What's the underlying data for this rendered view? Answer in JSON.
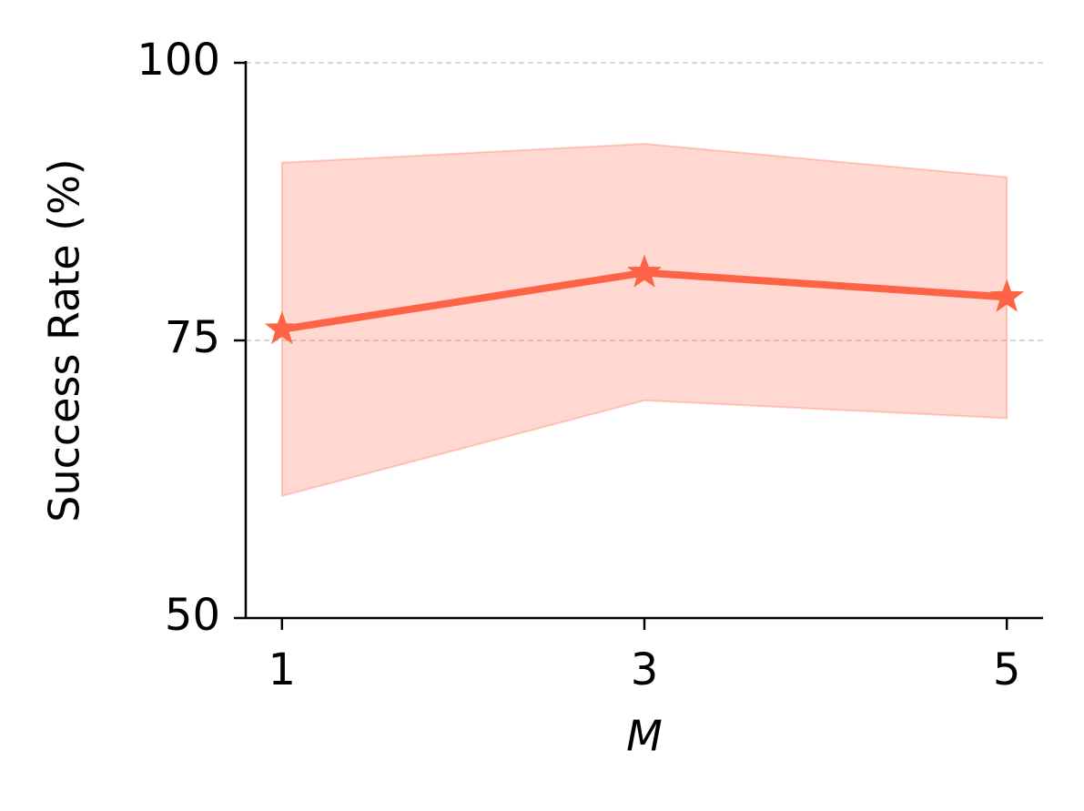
{
  "chart_data": {
    "type": "line",
    "x": [
      1,
      3,
      5
    ],
    "values": [
      76.0,
      81.1,
      78.9
    ],
    "lower": [
      61.0,
      69.6,
      68.0
    ],
    "upper": [
      91.0,
      92.7,
      89.7
    ],
    "color": "#ff6347",
    "xlabel": "M",
    "ylabel": "Success Rate (%)",
    "xlim": [
      0.8,
      5.2
    ],
    "xticks": [
      1,
      3,
      5
    ],
    "ylim": [
      50,
      100
    ],
    "yticks": [
      50,
      75,
      100
    ],
    "grid": true
  }
}
